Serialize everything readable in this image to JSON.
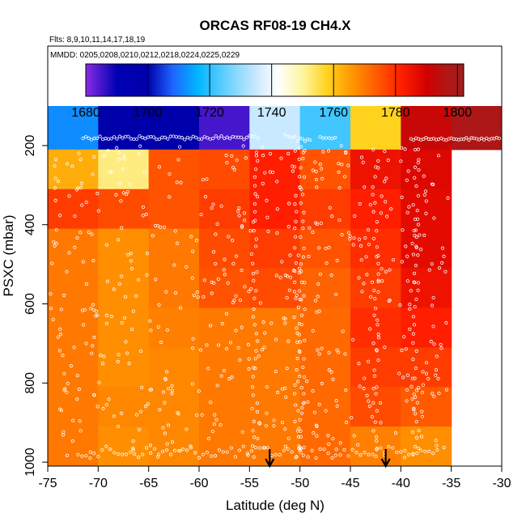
{
  "chart_data": {
    "type": "heatmap",
    "title": "ORCAS RF08-19 CH4.X",
    "flights_label": "Flts: 8,9,10,11,14,17,18,19",
    "mmdd_label": "MMDD: 0205,0208,0210,0212,0218,0224,0225,0229",
    "xlabel": "Latitude (deg N)",
    "ylabel": "PSXC (mbar)",
    "xlim": [
      -75,
      -30
    ],
    "ylim": [
      1000,
      100
    ],
    "x_ticks": [
      -75,
      -70,
      -65,
      -60,
      -55,
      -50,
      -45,
      -40,
      -35,
      -30
    ],
    "y_ticks": [
      200,
      400,
      600,
      800,
      1000
    ],
    "colorbar": {
      "range": [
        1680,
        1802
      ],
      "ticks": [
        1680,
        1700,
        1720,
        1740,
        1760,
        1780,
        1800
      ],
      "stops": [
        {
          "v": 1680,
          "c": "#8a2be2"
        },
        {
          "v": 1690,
          "c": "#0000b4"
        },
        {
          "v": 1700,
          "c": "#0000aa"
        },
        {
          "v": 1708,
          "c": "#1e64ff"
        },
        {
          "v": 1716,
          "c": "#00b4ff"
        },
        {
          "v": 1726,
          "c": "#6ed2ff"
        },
        {
          "v": 1736,
          "c": "#d2ebff"
        },
        {
          "v": 1742,
          "c": "#ffffff"
        },
        {
          "v": 1750,
          "c": "#fff5a0"
        },
        {
          "v": 1758,
          "c": "#ffd21e"
        },
        {
          "v": 1766,
          "c": "#ff9600"
        },
        {
          "v": 1774,
          "c": "#ff5a00"
        },
        {
          "v": 1782,
          "c": "#ff1e00"
        },
        {
          "v": 1790,
          "c": "#d20000"
        },
        {
          "v": 1796,
          "c": "#b41414"
        },
        {
          "v": 1802,
          "c": "#a01e1e"
        }
      ]
    },
    "lat_bins": [
      -75,
      -70,
      -65,
      -60,
      -55,
      -50,
      -45,
      -40,
      -35,
      -30
    ],
    "pressure_bins": [
      100,
      210,
      310,
      410,
      510,
      610,
      710,
      810,
      910,
      1010
    ],
    "cells": [
      [
        1712,
        1700,
        1700,
        1685,
        1735,
        1722,
        1758,
        1792,
        1798
      ],
      [
        1763,
        1752,
        1775,
        1776,
        1782,
        1775,
        1785,
        1788,
        null
      ],
      [
        1778,
        1776,
        1775,
        1778,
        1782,
        1778,
        1782,
        1787,
        null
      ],
      [
        1770,
        1767,
        1770,
        1776,
        1778,
        1775,
        1780,
        1787,
        null
      ],
      [
        1770,
        1767,
        1770,
        1775,
        1776,
        1773,
        1778,
        1785,
        null
      ],
      [
        1770,
        1767,
        1769,
        1770,
        1770,
        1772,
        1780,
        1782,
        null
      ],
      [
        1770,
        1767,
        1768,
        1770,
        1770,
        1772,
        1778,
        1778,
        null
      ],
      [
        1770,
        1768,
        1768,
        1770,
        1770,
        1772,
        1776,
        1774,
        null
      ],
      [
        1770,
        1767,
        1768,
        1770,
        1770,
        1772,
        1769,
        1767,
        null
      ]
    ],
    "arrows_lat": [
      -53,
      -41.5
    ],
    "axis_color": "#000000",
    "point_color": "#ffffff"
  }
}
